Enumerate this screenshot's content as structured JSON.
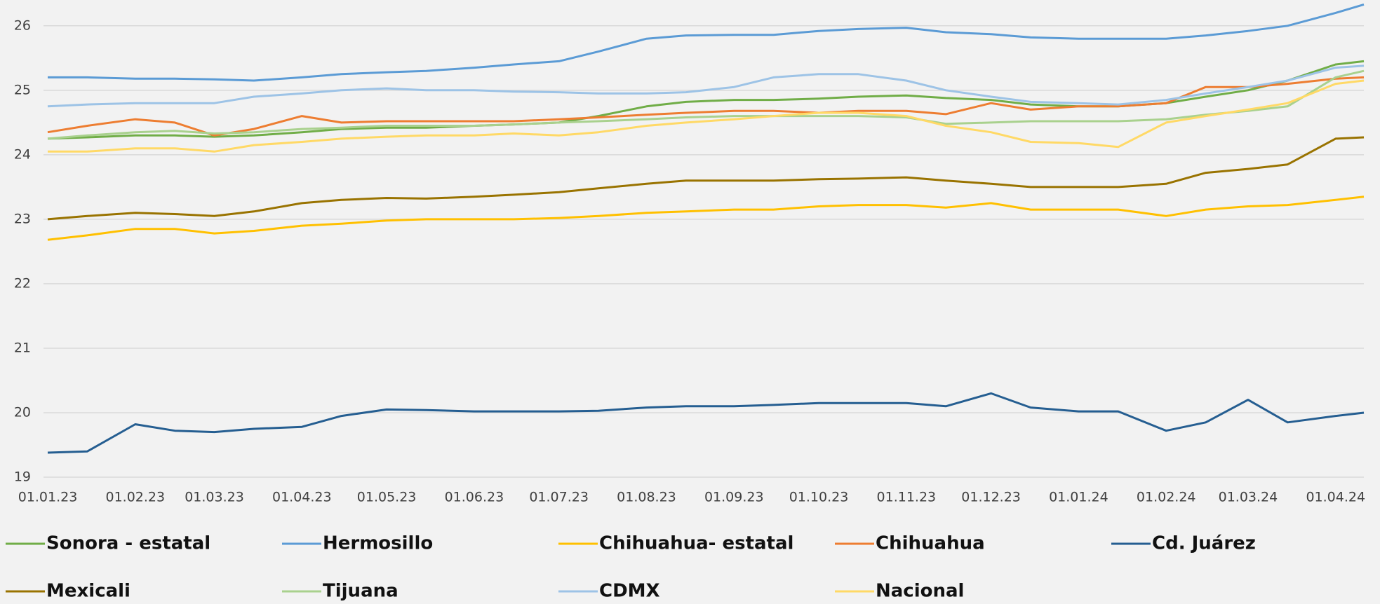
{
  "chart_data": {
    "type": "line",
    "x": [
      "01.01.23",
      "15.01.23",
      "01.02.23",
      "15.02.23",
      "01.03.23",
      "15.03.23",
      "01.04.23",
      "15.04.23",
      "01.05.23",
      "15.05.23",
      "01.06.23",
      "15.06.23",
      "01.07.23",
      "15.07.23",
      "01.08.23",
      "15.08.23",
      "01.09.23",
      "15.09.23",
      "01.10.23",
      "15.10.23",
      "01.11.23",
      "15.11.23",
      "01.12.23",
      "15.12.23",
      "01.01.24",
      "15.01.24",
      "01.02.24",
      "15.02.24",
      "01.03.24",
      "15.03.24",
      "01.04.24",
      "11.04.24"
    ],
    "xlim": [
      "01.01.23",
      "11.04.24"
    ],
    "xticks": [
      "01.01.23",
      "01.02.23",
      "01.03.23",
      "01.04.23",
      "01.05.23",
      "01.06.23",
      "01.07.23",
      "01.08.23",
      "01.09.23",
      "01.10.23",
      "01.11.23",
      "01.12.23",
      "01.01.24",
      "01.02.24",
      "01.03.24",
      "01.04.24"
    ],
    "ylim": [
      19,
      26.4
    ],
    "yticks": [
      19,
      20,
      21,
      22,
      23,
      24,
      25,
      26
    ],
    "grid": true,
    "legend": "bottom",
    "series": [
      {
        "name": "Sonora - estatal",
        "color": "#70ad47",
        "values": [
          24.25,
          24.27,
          24.3,
          24.3,
          24.28,
          24.3,
          24.35,
          24.4,
          24.42,
          24.42,
          24.45,
          24.47,
          24.5,
          24.6,
          24.75,
          24.82,
          24.85,
          24.85,
          24.87,
          24.9,
          24.92,
          24.88,
          24.85,
          24.78,
          24.75,
          24.75,
          24.8,
          24.9,
          25.0,
          25.15,
          25.4,
          25.45
        ]
      },
      {
        "name": "Hermosillo",
        "color": "#5b9bd5",
        "values": [
          25.2,
          25.2,
          25.18,
          25.18,
          25.17,
          25.15,
          25.2,
          25.25,
          25.28,
          25.3,
          25.35,
          25.4,
          25.45,
          25.6,
          25.8,
          25.85,
          25.86,
          25.86,
          25.92,
          25.95,
          25.97,
          25.9,
          25.87,
          25.82,
          25.8,
          25.8,
          25.8,
          25.85,
          25.92,
          26.0,
          26.2,
          26.33
        ]
      },
      {
        "name": "Chihuahua- estatal",
        "color": "#ffc000",
        "values": [
          22.68,
          22.75,
          22.85,
          22.85,
          22.78,
          22.82,
          22.9,
          22.93,
          22.98,
          23.0,
          23.0,
          23.0,
          23.02,
          23.05,
          23.1,
          23.12,
          23.15,
          23.15,
          23.2,
          23.22,
          23.22,
          23.18,
          23.25,
          23.15,
          23.15,
          23.15,
          23.05,
          23.15,
          23.2,
          23.22,
          23.3,
          23.35
        ]
      },
      {
        "name": "Chihuahua",
        "color": "#ed7d31",
        "values": [
          24.35,
          24.45,
          24.55,
          24.5,
          24.3,
          24.4,
          24.6,
          24.5,
          24.52,
          24.52,
          24.52,
          24.52,
          24.55,
          24.58,
          24.62,
          24.65,
          24.68,
          24.68,
          24.65,
          24.68,
          24.68,
          24.63,
          24.8,
          24.7,
          24.75,
          24.75,
          24.8,
          25.05,
          25.05,
          25.1,
          25.18,
          25.2
        ]
      },
      {
        "name": "Cd. Juárez",
        "color": "#255e91",
        "values": [
          19.38,
          19.4,
          19.82,
          19.72,
          19.7,
          19.75,
          19.78,
          19.95,
          20.05,
          20.04,
          20.02,
          20.02,
          20.02,
          20.03,
          20.08,
          20.1,
          20.1,
          20.12,
          20.15,
          20.15,
          20.15,
          20.1,
          20.3,
          20.08,
          20.02,
          20.02,
          19.72,
          19.85,
          20.2,
          19.85,
          19.95,
          20.0
        ]
      },
      {
        "name": "Mexicali",
        "color": "#997300",
        "values": [
          23.0,
          23.05,
          23.1,
          23.08,
          23.05,
          23.12,
          23.25,
          23.3,
          23.33,
          23.32,
          23.35,
          23.38,
          23.42,
          23.48,
          23.55,
          23.6,
          23.6,
          23.6,
          23.62,
          23.63,
          23.65,
          23.6,
          23.55,
          23.5,
          23.5,
          23.5,
          23.55,
          23.72,
          23.78,
          23.85,
          24.25,
          24.27
        ]
      },
      {
        "name": "Tijuana",
        "color": "#a9d18e",
        "values": [
          24.25,
          24.3,
          24.35,
          24.37,
          24.33,
          24.35,
          24.4,
          24.42,
          24.45,
          24.45,
          24.45,
          24.47,
          24.5,
          24.52,
          24.55,
          24.58,
          24.6,
          24.6,
          24.6,
          24.6,
          24.58,
          24.48,
          24.5,
          24.52,
          24.52,
          24.52,
          24.55,
          24.62,
          24.68,
          24.75,
          25.2,
          25.3
        ]
      },
      {
        "name": "CDMX",
        "color": "#9dc3e6",
        "values": [
          24.75,
          24.78,
          24.8,
          24.8,
          24.8,
          24.9,
          24.95,
          25.0,
          25.03,
          25.0,
          25.0,
          24.98,
          24.97,
          24.95,
          24.95,
          24.97,
          25.05,
          25.2,
          25.25,
          25.25,
          25.15,
          25.0,
          24.9,
          24.82,
          24.8,
          24.78,
          24.85,
          24.95,
          25.05,
          25.15,
          25.35,
          25.38
        ]
      },
      {
        "name": "Nacional",
        "color": "#ffd966",
        "values": [
          24.05,
          24.05,
          24.1,
          24.1,
          24.05,
          24.15,
          24.2,
          24.25,
          24.28,
          24.3,
          24.3,
          24.33,
          24.3,
          24.35,
          24.45,
          24.5,
          24.55,
          24.6,
          24.65,
          24.65,
          24.6,
          24.45,
          24.35,
          24.2,
          24.18,
          24.12,
          24.5,
          24.6,
          24.7,
          24.8,
          25.1,
          25.15
        ]
      }
    ]
  }
}
